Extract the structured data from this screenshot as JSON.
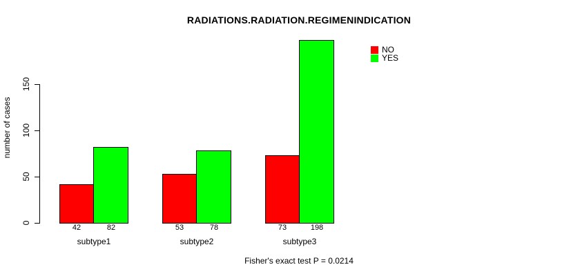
{
  "chart_data": {
    "type": "bar",
    "title": "RADIATIONS.RADIATION.REGIMENINDICATION",
    "ylabel": "number of cases",
    "xlabel": "",
    "categories": [
      "subtype1",
      "subtype2",
      "subtype3"
    ],
    "series": [
      {
        "name": "NO",
        "color": "#ff0000",
        "values": [
          42,
          53,
          73
        ]
      },
      {
        "name": "YES",
        "color": "#00ff00",
        "values": [
          82,
          78,
          198
        ]
      }
    ],
    "bar_value_labels": [
      [
        42,
        82
      ],
      [
        53,
        78
      ],
      [
        73,
        198
      ]
    ],
    "yticks": [
      0,
      50,
      100,
      150
    ],
    "ylim": [
      0,
      207
    ],
    "grid": false,
    "legend_position": "top-right",
    "footnote": "Fisher's exact test P = 0.0214",
    "p_value": "0.0214",
    "bar_border_color": "#000000",
    "axis_color": "#000000"
  }
}
